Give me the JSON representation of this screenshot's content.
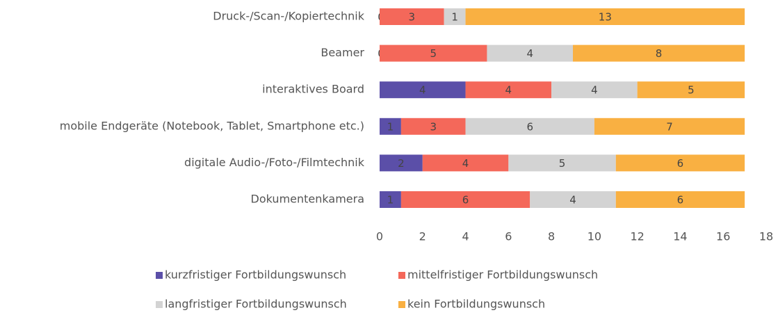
{
  "chart_data": {
    "type": "stacked-bar-horizontal",
    "categories": [
      "Druck-/Scan-/Kopiertechnik",
      "Beamer",
      "interaktives Board",
      "mobile Endgeräte (Notebook, Tablet, Smartphone etc.)",
      "digitale Audio-/Foto-/Filmtechnik",
      "Dokumentenkamera"
    ],
    "series": [
      {
        "name": "kurzfristiger Fortbildungswunsch",
        "color": "#5b4fa8",
        "values": [
          0,
          0,
          4,
          1,
          2,
          1
        ]
      },
      {
        "name": "mittelfristiger Fortbildungswunsch",
        "color": "#f4685a",
        "values": [
          3,
          5,
          4,
          3,
          4,
          6
        ]
      },
      {
        "name": "langfristiger Fortbildungswunsch",
        "color": "#d3d3d3",
        "values": [
          1,
          4,
          4,
          6,
          5,
          4
        ]
      },
      {
        "name": "kein Fortbildungswunsch",
        "color": "#f9b042",
        "values": [
          13,
          8,
          5,
          7,
          6,
          6
        ]
      }
    ],
    "xlim": [
      0,
      18
    ],
    "xticks": [
      0,
      2,
      4,
      6,
      8,
      10,
      12,
      14,
      16,
      18
    ]
  }
}
